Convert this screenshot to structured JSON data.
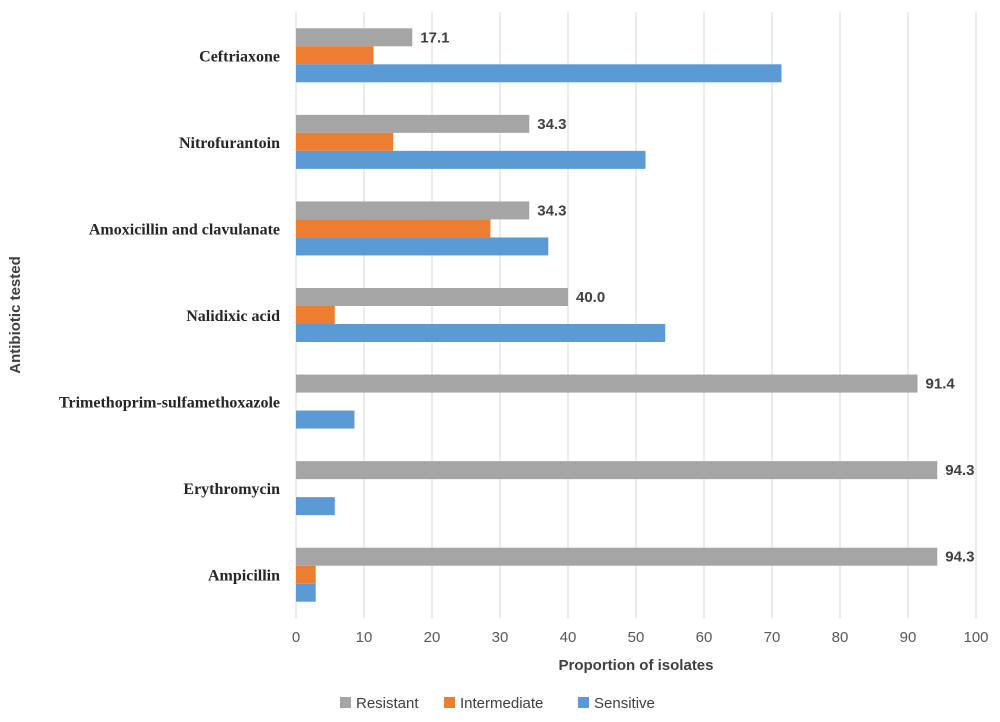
{
  "chart_data": {
    "type": "bar",
    "orientation": "horizontal",
    "categories": [
      "Ceftriaxone",
      "Nitrofurantoin",
      "Amoxicillin and clavulanate",
      "Nalidixic acid",
      "Trimethoprim-sulfamethoxazole",
      "Erythromycin",
      "Ampicillin"
    ],
    "series": [
      {
        "name": "Resistant",
        "color": "#A5A5A5",
        "values": [
          17.1,
          34.3,
          34.3,
          40.0,
          91.4,
          94.3,
          94.3
        ],
        "data_labels": [
          "17.1",
          "34.3",
          "34.3",
          "40.0",
          "91.4",
          "94.3",
          "94.3"
        ]
      },
      {
        "name": "Intermediate",
        "color": "#ED7D31",
        "values": [
          11.4,
          14.3,
          28.6,
          5.7,
          0,
          0,
          2.9
        ]
      },
      {
        "name": "Sensitive",
        "color": "#5B9BD5",
        "values": [
          71.4,
          51.4,
          37.1,
          54.3,
          8.6,
          5.7,
          2.9
        ]
      }
    ],
    "xlabel": "Proportion of isolates",
    "ylabel": "Antibiotic tested",
    "xlim": [
      0,
      100
    ],
    "xticks": [
      0,
      10,
      20,
      30,
      40,
      50,
      60,
      70,
      80,
      90,
      100
    ],
    "grid": "vertical",
    "legend": "bottom"
  }
}
